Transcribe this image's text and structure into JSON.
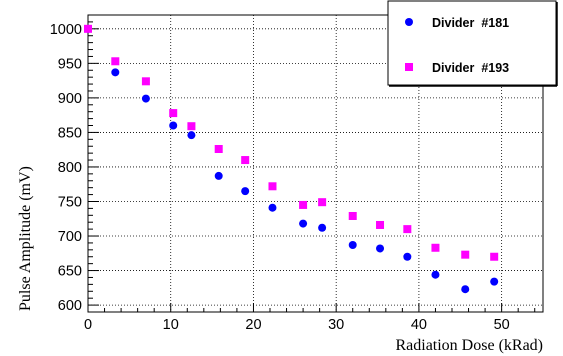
{
  "chart_data": {
    "type": "scatter",
    "title": "",
    "xlabel": "Radiation Dose (kRad)",
    "ylabel": "Pulse Amplitude (mV)",
    "xlim": [
      0,
      55
    ],
    "ylim": [
      590,
      1020
    ],
    "x_ticks": [
      0,
      10,
      20,
      30,
      40,
      50
    ],
    "y_ticks": [
      600,
      650,
      700,
      750,
      800,
      850,
      900,
      950,
      1000
    ],
    "grid": true,
    "grid_style": "dotted",
    "legend_position": "top-right",
    "series": [
      {
        "name": "Divider  #181",
        "marker": "circle",
        "color": "#0000ff",
        "x": [
          0,
          3.3,
          7.0,
          10.3,
          12.5,
          15.8,
          19.0,
          22.3,
          26.0,
          28.3,
          32.0,
          35.3,
          38.6,
          42.0,
          45.6,
          49.1
        ],
        "y": [
          1000,
          937,
          899,
          860,
          846,
          787,
          765,
          741,
          718,
          712,
          687,
          682,
          670,
          644,
          623,
          634
        ]
      },
      {
        "name": "Divider  #193",
        "marker": "square",
        "color": "#ff00ff",
        "x": [
          0,
          3.3,
          7.0,
          10.3,
          12.5,
          15.8,
          19.0,
          22.3,
          26.0,
          28.3,
          32.0,
          35.3,
          38.6,
          42.0,
          45.6,
          49.1
        ],
        "y": [
          1000,
          953,
          924,
          878,
          859,
          826,
          810,
          772,
          745,
          749,
          729,
          716,
          710,
          683,
          673,
          670
        ]
      }
    ]
  }
}
